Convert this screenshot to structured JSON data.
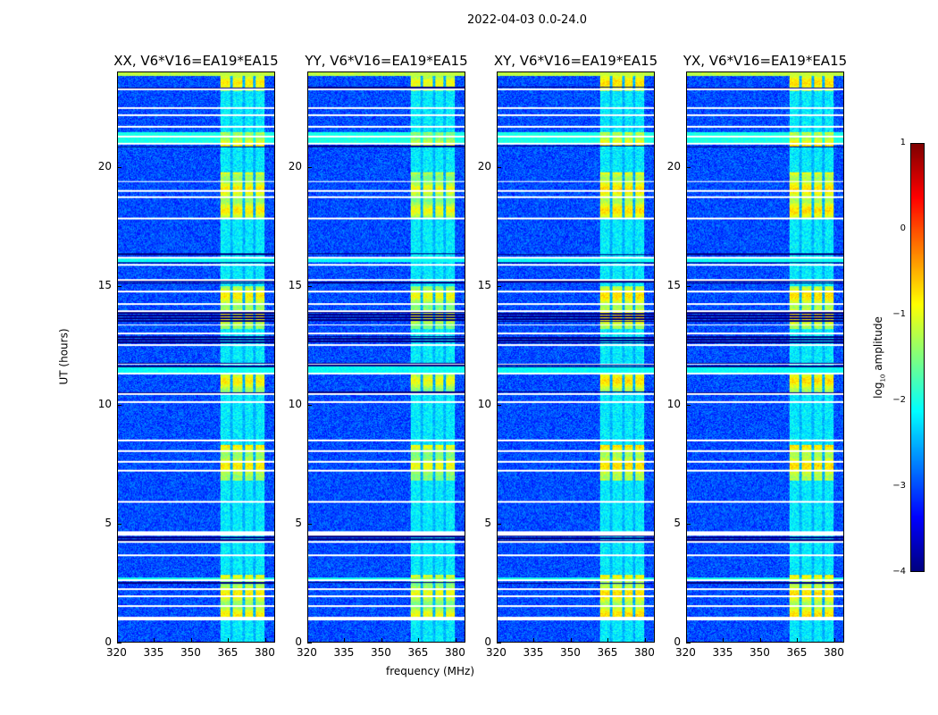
{
  "chart_data": {
    "type": "heatmap",
    "title": "2022-04-03 0.0-24.0",
    "xlabel": "frequency (MHz)",
    "ylabel": "UT (hours)",
    "xlim": [
      320,
      384
    ],
    "ylim": [
      0,
      24
    ],
    "xticks": [
      320,
      335,
      350,
      365,
      380
    ],
    "yticks": [
      0,
      5,
      10,
      15,
      20
    ],
    "panels": [
      {
        "title": "XX, V6*V16=EA19*EA15",
        "rfi_gain": 1.0
      },
      {
        "title": "YY, V6*V16=EA19*EA15",
        "rfi_gain": 1.15
      },
      {
        "title": "XY, V6*V16=EA19*EA15",
        "rfi_gain": 0.9
      },
      {
        "title": "YX, V6*V16=EA19*EA15",
        "rfi_gain": 0.9
      }
    ],
    "colorbar": {
      "label": "log10 amplitude",
      "label_main": "log",
      "label_sub": "10",
      "label_rest": " amplitude",
      "range": [
        -4,
        1
      ],
      "ticks": [
        1,
        0,
        -1,
        -2,
        -3,
        -4
      ],
      "tick_labels": [
        "1",
        "0",
        "−1",
        "−2",
        "−3",
        "−4"
      ],
      "colormap": "jet"
    },
    "background_level": -3.0,
    "rfi_channels_mhz": [
      [
        362,
        366
      ],
      [
        367,
        371
      ],
      [
        372,
        375.5
      ],
      [
        376.5,
        380
      ]
    ],
    "rfi_base_level": -2.2,
    "rfi_active_hours": [
      [
        0.9,
        2.8
      ],
      [
        6.8,
        8.3
      ],
      [
        10.5,
        11.3
      ],
      [
        13.2,
        15.0
      ],
      [
        17.8,
        19.8
      ],
      [
        20.9,
        21.5
      ],
      [
        23.2,
        24.0
      ]
    ],
    "rfi_active_level": -0.9,
    "broadband_hours": [
      [
        23.85,
        24.0,
        -1.2
      ],
      [
        21.0,
        21.5,
        -2.0
      ],
      [
        11.3,
        11.6,
        -2.1
      ],
      [
        2.55,
        2.7,
        -2.0
      ],
      [
        16.0,
        16.15,
        -2.1
      ]
    ],
    "flagged_white_hours": [
      0.98,
      1.5,
      1.9,
      2.2,
      2.6,
      3.65,
      4.2,
      4.55,
      5.9,
      7.2,
      7.6,
      8.05,
      8.5,
      10.1,
      10.45,
      11.3,
      11.7,
      12.5,
      13.0,
      13.35,
      13.95,
      14.25,
      14.75,
      15.25,
      15.9,
      16.2,
      17.85,
      18.75,
      19.0,
      19.4,
      21.0,
      21.3,
      21.7,
      22.2,
      22.5,
      23.3
    ],
    "dark_hours": [
      [
        23.25,
        23.4
      ],
      [
        20.85,
        20.92
      ],
      [
        16.3,
        16.36
      ],
      [
        15.95,
        16.0
      ],
      [
        15.1,
        15.2
      ],
      [
        13.5,
        13.9
      ],
      [
        12.6,
        12.9
      ],
      [
        11.55,
        11.75
      ],
      [
        10.4,
        10.55
      ],
      [
        4.2,
        4.5
      ],
      [
        2.45,
        2.5
      ]
    ]
  }
}
